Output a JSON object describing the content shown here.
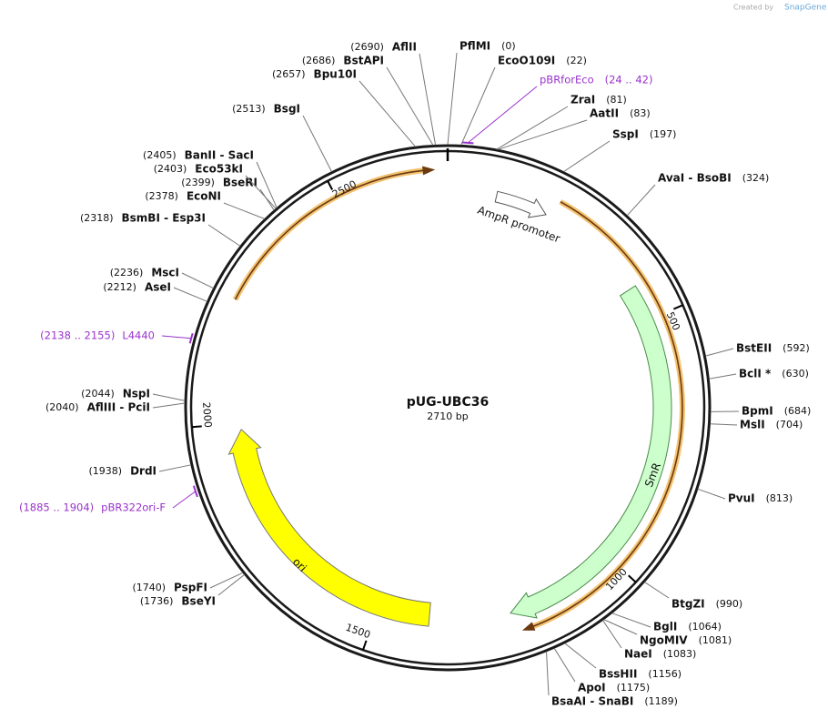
{
  "watermark": {
    "created_by": "Created by",
    "brand": "SnapGene"
  },
  "plasmid": {
    "name": "pUG-UBC36",
    "length": 2710,
    "length_label": "2710 bp"
  },
  "ruler_ticks": [
    500,
    1000,
    1500,
    2000,
    2500
  ],
  "features": [
    {
      "name": "AmpR promoter"
    },
    {
      "name": "SmR"
    },
    {
      "name": "ori"
    }
  ],
  "primers": [
    {
      "name": "pBRforEco",
      "start": 24,
      "end": 42,
      "range_label": "(24 .. 42)"
    },
    {
      "name": "L4440",
      "start": 2138,
      "end": 2155,
      "range_label": "(2138 .. 2155)"
    },
    {
      "name": "pBR322ori-F",
      "start": 1885,
      "end": 1904,
      "range_label": "(1885 .. 1904)"
    }
  ],
  "sites": [
    {
      "name": "PflMI",
      "position": 0,
      "position_label": "(0)"
    },
    {
      "name": "EcoO109I",
      "position": 22,
      "position_label": "(22)"
    },
    {
      "name": "ZraI",
      "position": 81,
      "position_label": "(81)"
    },
    {
      "name": "AatII",
      "position": 83,
      "position_label": "(83)"
    },
    {
      "name": "SspI",
      "position": 197,
      "position_label": "(197)"
    },
    {
      "name": "AvaI - BsoBI",
      "position": 324,
      "position_label": "(324)"
    },
    {
      "name": "BstEII",
      "position": 592,
      "position_label": "(592)"
    },
    {
      "name": "BclI *",
      "position": 630,
      "position_label": "(630)"
    },
    {
      "name": "BpmI",
      "position": 684,
      "position_label": "(684)"
    },
    {
      "name": "MslI",
      "position": 704,
      "position_label": "(704)"
    },
    {
      "name": "PvuI",
      "position": 813,
      "position_label": "(813)"
    },
    {
      "name": "BtgZI",
      "position": 990,
      "position_label": "(990)"
    },
    {
      "name": "BglI",
      "position": 1064,
      "position_label": "(1064)"
    },
    {
      "name": "NgoMIV",
      "position": 1081,
      "position_label": "(1081)"
    },
    {
      "name": "NaeI",
      "position": 1083,
      "position_label": "(1083)"
    },
    {
      "name": "BssHII",
      "position": 1156,
      "position_label": "(1156)"
    },
    {
      "name": "ApoI",
      "position": 1175,
      "position_label": "(1175)"
    },
    {
      "name": "BsaAI - SnaBI",
      "position": 1189,
      "position_label": "(1189)"
    },
    {
      "name": "BseYI",
      "position": 1736,
      "position_label": "(1736)"
    },
    {
      "name": "PspFI",
      "position": 1740,
      "position_label": "(1740)"
    },
    {
      "name": "DrdI",
      "position": 1938,
      "position_label": "(1938)"
    },
    {
      "name": "AflIII - PciI",
      "position": 2040,
      "position_label": "(2040)"
    },
    {
      "name": "NspI",
      "position": 2044,
      "position_label": "(2044)"
    },
    {
      "name": "AseI",
      "position": 2212,
      "position_label": "(2212)"
    },
    {
      "name": "MscI",
      "position": 2236,
      "position_label": "(2236)"
    },
    {
      "name": "BsmBI - Esp3I",
      "position": 2318,
      "position_label": "(2318)"
    },
    {
      "name": "EcoNI",
      "position": 2378,
      "position_label": "(2378)"
    },
    {
      "name": "BseRI",
      "position": 2399,
      "position_label": "(2399)"
    },
    {
      "name": "Eco53kI",
      "position": 2403,
      "position_label": "(2403)"
    },
    {
      "name": "BanII - SacI",
      "position": 2405,
      "position_label": "(2405)"
    },
    {
      "name": "BsgI",
      "position": 2513,
      "position_label": "(2513)"
    },
    {
      "name": "Bpu10I",
      "position": 2657,
      "position_label": "(2657)"
    },
    {
      "name": "BstAPI",
      "position": 2686,
      "position_label": "(2686)"
    },
    {
      "name": "AflII",
      "position": 2690,
      "position_label": "(2690)"
    }
  ]
}
